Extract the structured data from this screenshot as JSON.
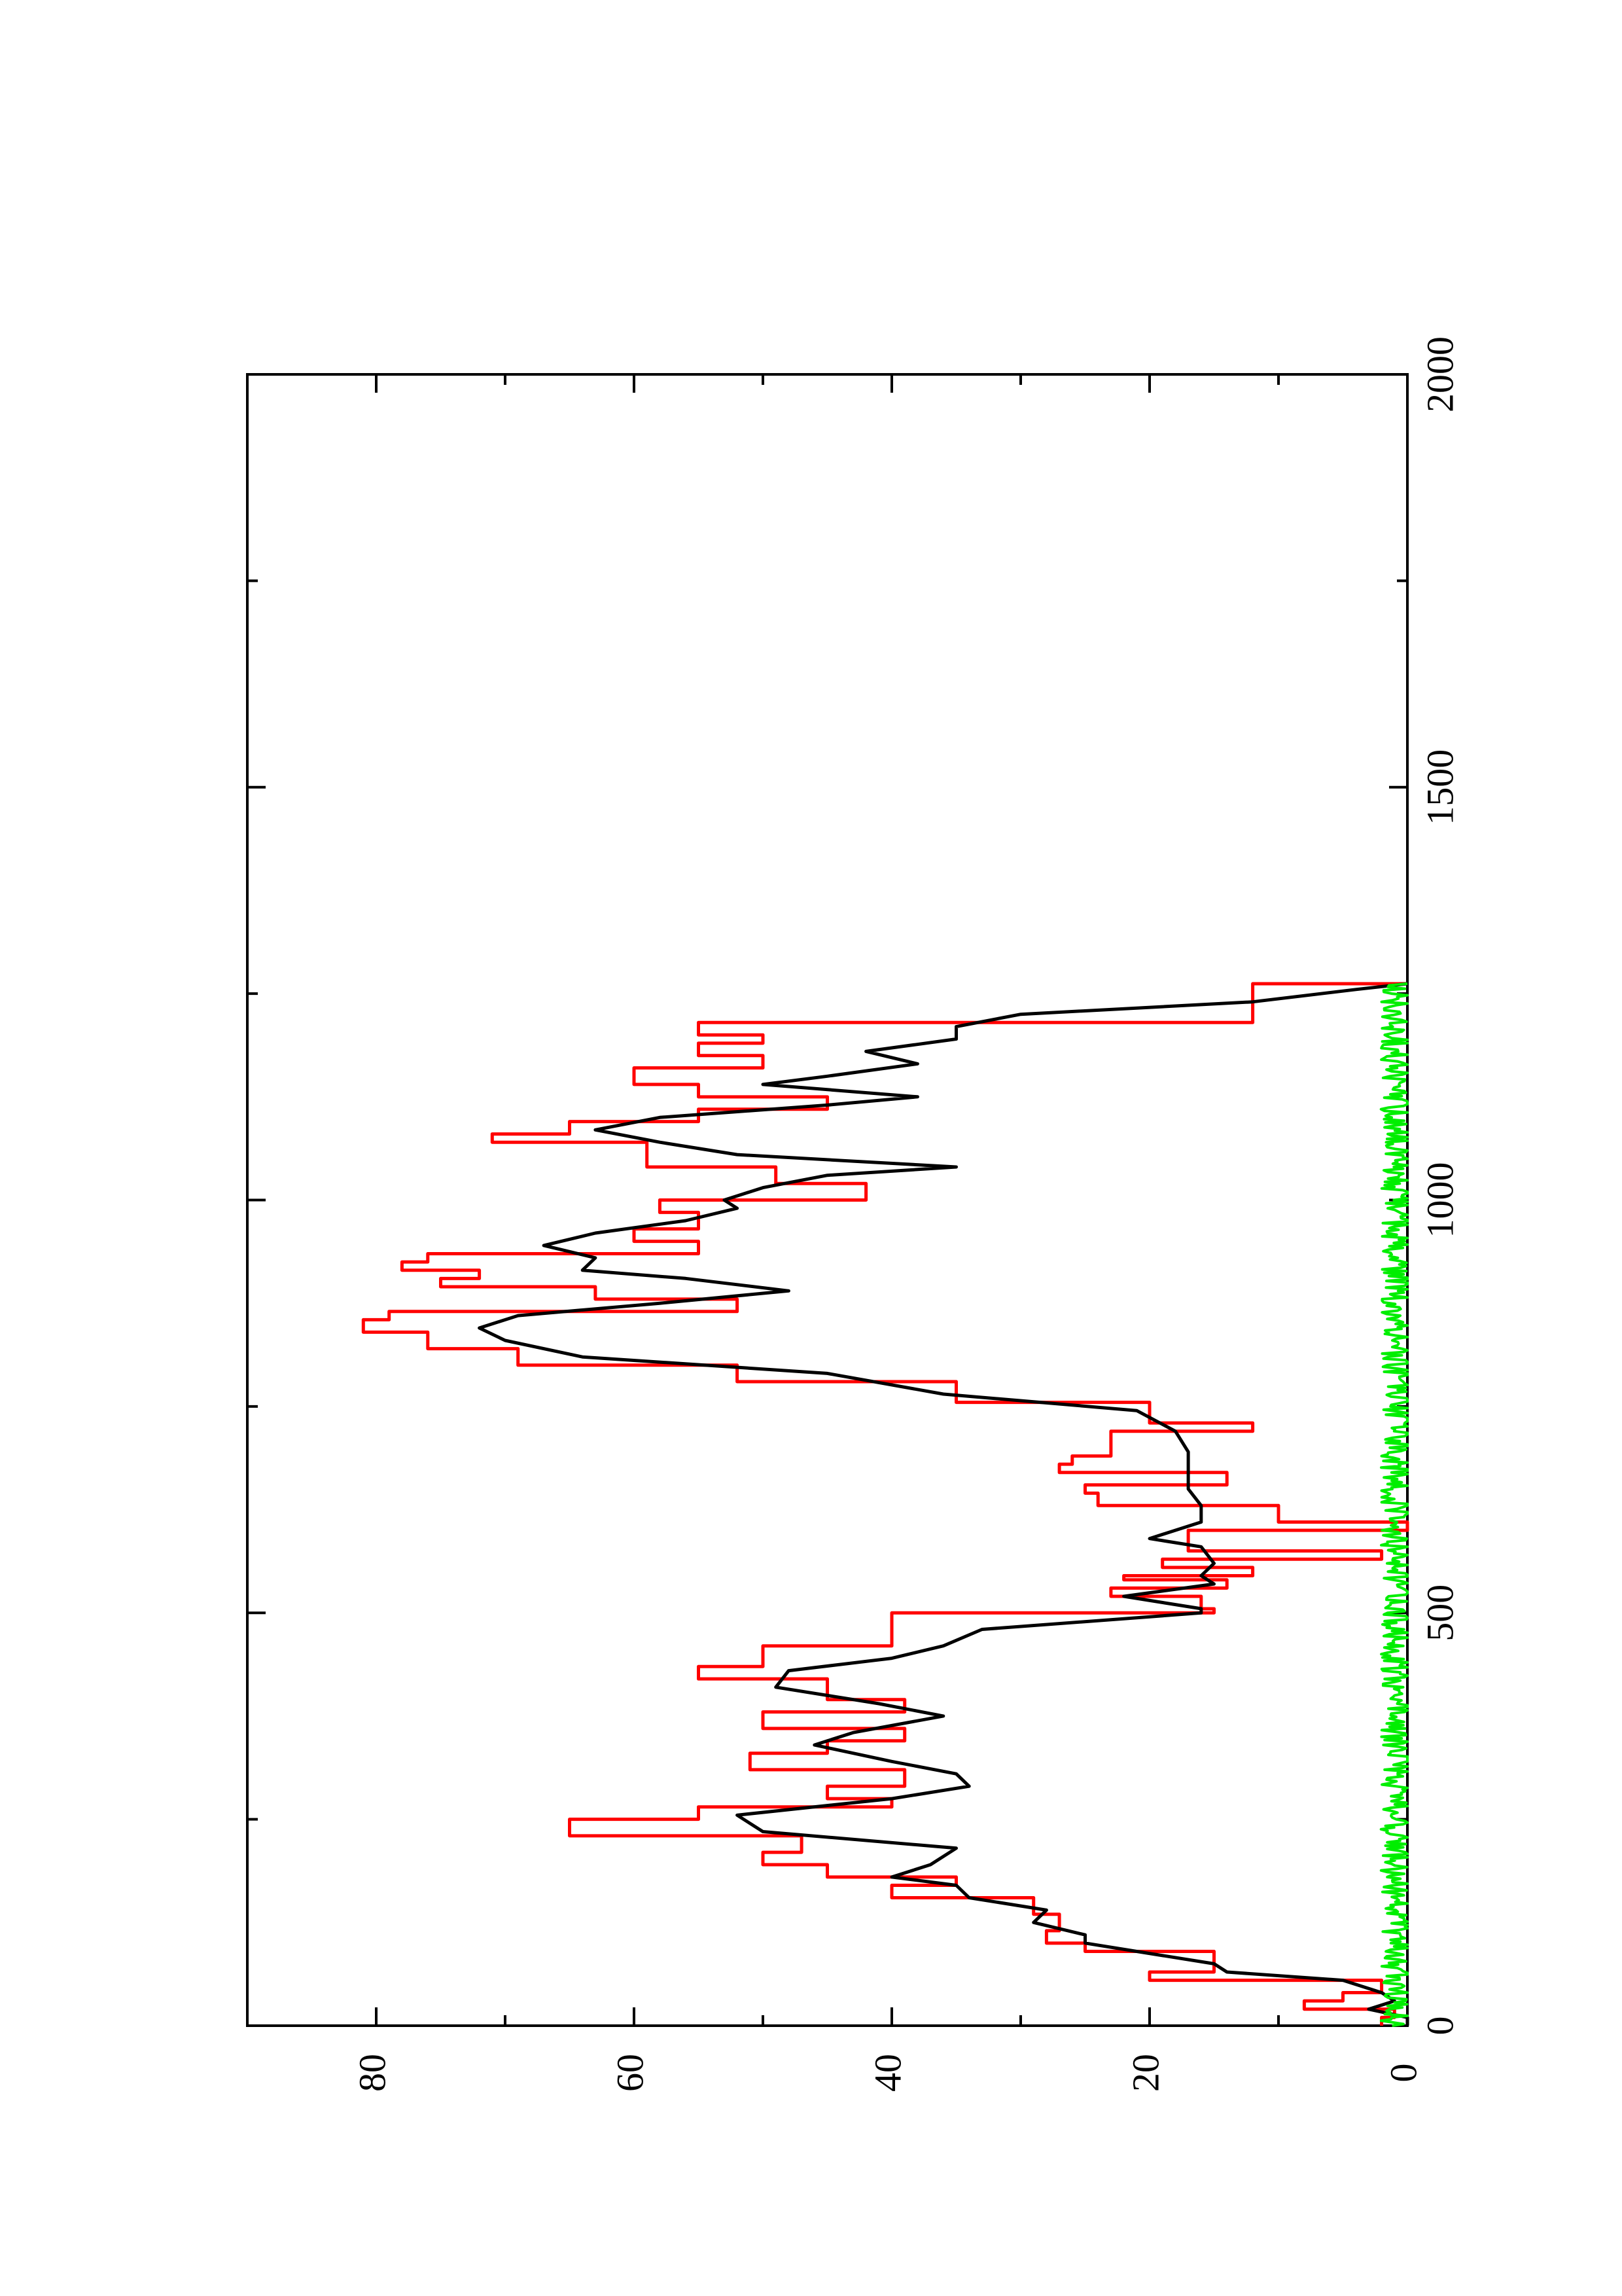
{
  "chart_data": {
    "type": "line",
    "orientation": "rotated-90-ccw",
    "title": "",
    "xlabel": "",
    "ylabel": "",
    "xlim": [
      0,
      2000
    ],
    "ylim": [
      0,
      90
    ],
    "x_ticks": [
      0,
      500,
      1000,
      1500,
      2000
    ],
    "x_tick_labels": [
      "0",
      "500",
      "1000",
      "1500",
      "2000"
    ],
    "x_minor_ticks": [
      250,
      750,
      1250,
      1750
    ],
    "y_ticks": [
      0,
      20,
      40,
      60,
      80
    ],
    "y_tick_labels": [
      "0",
      "20",
      "40",
      "60",
      "80"
    ],
    "y_minor_ticks": [
      10,
      30,
      50,
      70
    ],
    "grid": false,
    "legend": "none",
    "series": [
      {
        "color": "#ff0000",
        "style": "step",
        "x": [
          0,
          10,
          20,
          30,
          40,
          55,
          65,
          75,
          90,
          100,
          115,
          135,
          155,
          170,
          180,
          195,
          210,
          230,
          250,
          265,
          275,
          290,
          310,
          330,
          345,
          360,
          380,
          395,
          420,
          435,
          460,
          500,
          505,
          520,
          530,
          540,
          545,
          555,
          565,
          575,
          600,
          610,
          630,
          645,
          655,
          670,
          680,
          690,
          720,
          730,
          755,
          780,
          800,
          820,
          840,
          855,
          865,
          880,
          895,
          905,
          915,
          925,
          935,
          950,
          965,
          985,
          1000,
          1020,
          1040,
          1055,
          1070,
          1080,
          1095,
          1110,
          1125,
          1140,
          1160,
          1175,
          1190,
          1200,
          1215,
          1230,
          1250,
          1262
        ],
        "y": [
          2,
          1,
          8,
          5,
          2,
          20,
          15,
          15,
          25,
          28,
          27,
          29,
          40,
          35,
          45,
          50,
          47,
          65,
          55,
          40,
          45,
          39,
          51,
          45,
          39,
          50,
          39,
          45,
          55,
          50,
          40,
          15,
          16,
          23,
          14,
          22,
          12,
          19,
          2,
          17,
          0,
          10,
          24,
          25,
          14,
          27,
          26,
          23,
          12,
          20,
          35,
          52,
          69,
          76,
          81,
          79,
          52,
          63,
          75,
          72,
          78,
          76,
          55,
          60,
          55,
          58,
          42,
          49,
          59,
          59,
          71,
          65,
          55,
          45,
          55,
          60,
          50,
          55,
          50,
          55,
          12,
          12,
          12,
          0
        ]
      },
      {
        "color": "#000000",
        "style": "line",
        "x": [
          0,
          10,
          20,
          30,
          40,
          55,
          65,
          75,
          90,
          100,
          110,
          125,
          140,
          155,
          170,
          180,
          195,
          215,
          235,
          255,
          275,
          290,
          305,
          320,
          340,
          355,
          375,
          390,
          410,
          430,
          445,
          460,
          480,
          500,
          505,
          520,
          535,
          545,
          560,
          580,
          590,
          610,
          630,
          650,
          665,
          680,
          695,
          720,
          745,
          765,
          790,
          810,
          830,
          845,
          860,
          875,
          890,
          905,
          915,
          930,
          945,
          960,
          975,
          990,
          1000,
          1015,
          1030,
          1040,
          1055,
          1070,
          1085,
          1100,
          1115,
          1125,
          1140,
          1150,
          1165,
          1180,
          1195,
          1210,
          1225,
          1240,
          1255,
          1262
        ],
        "y": [
          0,
          0,
          3,
          1,
          2,
          5,
          14,
          15,
          21,
          25,
          25,
          29,
          28,
          34,
          35,
          40,
          37,
          35,
          50,
          52,
          40,
          34,
          35,
          40,
          46,
          43,
          36,
          41,
          49,
          48,
          40,
          36,
          33,
          16,
          16,
          22,
          15,
          16,
          15,
          16,
          20,
          16,
          16,
          17,
          17,
          17,
          17,
          18,
          21,
          36,
          45,
          64,
          70,
          72,
          69,
          58,
          48,
          56,
          64,
          63,
          67,
          63,
          56,
          52,
          53,
          50,
          45,
          35,
          52,
          58,
          63,
          58,
          45,
          38,
          50,
          45,
          38,
          42,
          35,
          35,
          30,
          12,
          4,
          0
        ]
      },
      {
        "color": "#00ee00",
        "style": "noise",
        "x_start": 0,
        "x_end": 1262,
        "y_min": 0,
        "y_max": 2.5,
        "y_mean": 0.8
      }
    ]
  }
}
